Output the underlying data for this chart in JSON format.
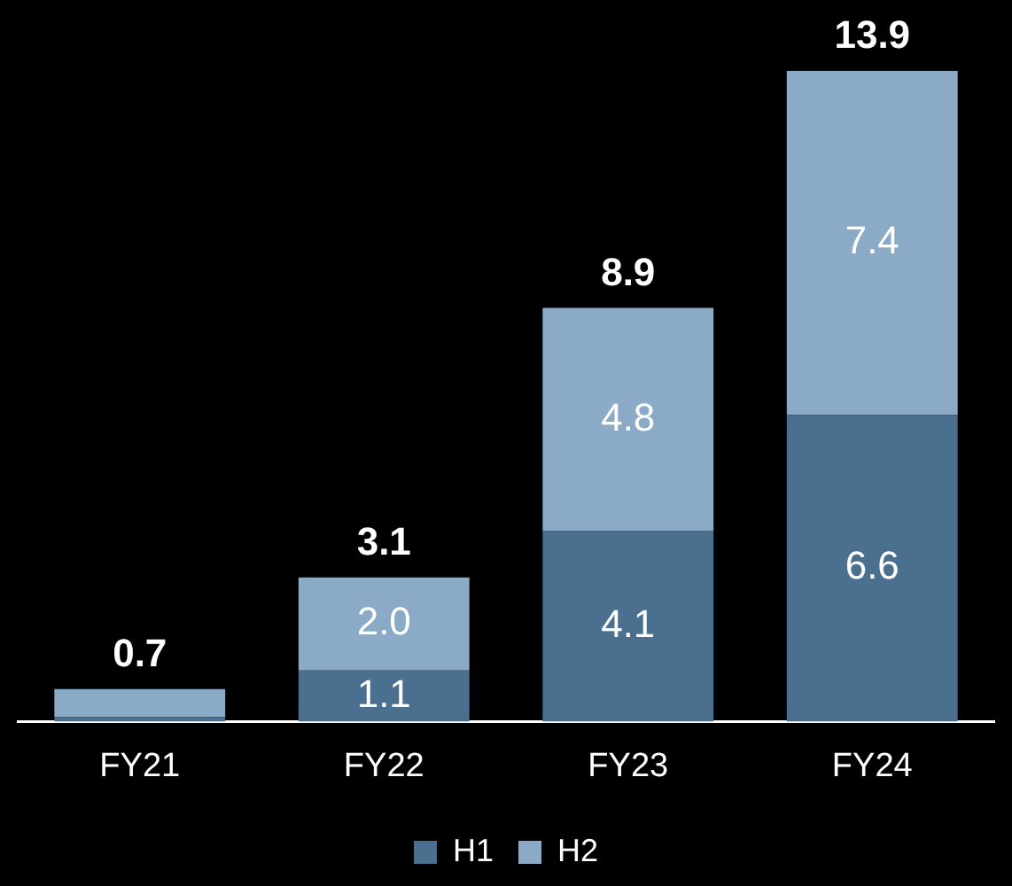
{
  "chart_data": {
    "type": "bar",
    "stacked": true,
    "categories": [
      "FY21",
      "FY22",
      "FY23",
      "FY24"
    ],
    "series": [
      {
        "name": "H1",
        "color": "#4a6f8f",
        "values": [
          0.1,
          1.1,
          4.1,
          6.6
        ],
        "value_labels": [
          null,
          "1.1",
          "4.1",
          "6.6"
        ]
      },
      {
        "name": "H2",
        "color": "#8aaac6",
        "values": [
          0.6,
          2.0,
          4.8,
          7.4
        ],
        "value_labels": [
          null,
          "2.0",
          "4.8",
          "7.4"
        ]
      }
    ],
    "totals": [
      "0.7",
      "3.1",
      "8.9",
      "13.9"
    ],
    "legend": "bottom",
    "tick_labels": "x"
  }
}
